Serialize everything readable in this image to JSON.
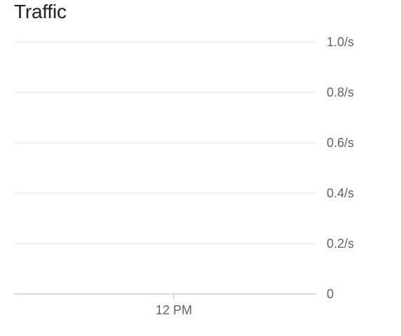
{
  "chart_data": {
    "type": "line",
    "title": "Traffic",
    "xlabel": "",
    "ylabel": "",
    "x_tick_labels": [
      "12 PM"
    ],
    "y_tick_labels": [
      "0",
      "0.2/s",
      "0.4/s",
      "0.6/s",
      "0.8/s",
      "1.0/s"
    ],
    "y_ticks": [
      0,
      0.2,
      0.4,
      0.6,
      0.8,
      1.0
    ],
    "ylim": [
      0,
      1.0
    ],
    "y_unit": "/s",
    "grid": true,
    "series": []
  },
  "colors": {
    "gridline": "#e8eaed",
    "baseline": "#dadce0",
    "tick_text": "#5f6368",
    "title_text": "#202124"
  }
}
